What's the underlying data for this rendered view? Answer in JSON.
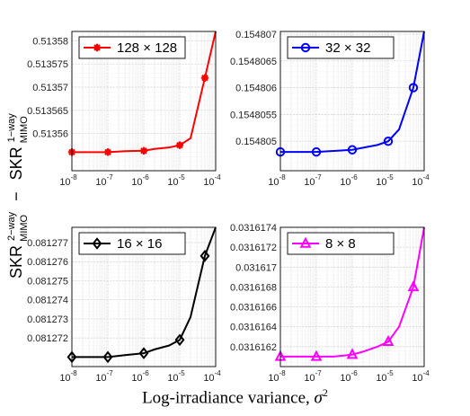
{
  "figure": {
    "xlabel_text": "Log-irradiance variance, ",
    "xlabel_symbol": "σ",
    "xlabel_power": "2",
    "ylabel_skr": "SKR",
    "ylabel_sub": "MIMO",
    "ylabel_sup_two": "2−way",
    "ylabel_sup_one": "1−way",
    "ylabel_minus": "−"
  },
  "chart_data": [
    {
      "type": "line",
      "legend": "128 × 128",
      "color": "#ff0000",
      "marker": "star",
      "xscale": "log",
      "xlim": [
        1e-08,
        0.0001
      ],
      "xticks": [
        1e-08,
        1e-07,
        1e-06,
        1e-05,
        0.0001
      ],
      "xtick_labels": [
        "10-8",
        "10-7",
        "10-6",
        "10-5",
        "10-4"
      ],
      "ylim": [
        0.513552,
        0.513582
      ],
      "yticks": [
        0.51356,
        0.513565,
        0.51357,
        0.513575,
        0.51358
      ],
      "ytick_labels": [
        "0.51356",
        "0.513565",
        "0.51357",
        "0.513575",
        "0.51358"
      ],
      "x": [
        1e-08,
        3e-08,
        1e-07,
        3e-07,
        1e-06,
        2e-06,
        5e-06,
        1e-05,
        2e-05,
        5e-05,
        0.0001
      ],
      "y": [
        0.513556,
        0.513556,
        0.513556,
        0.5135562,
        0.5135563,
        0.5135567,
        0.513557,
        0.5135575,
        0.513559,
        0.513572,
        0.513582
      ],
      "marker_x": [
        1e-08,
        1e-07,
        1e-06,
        1e-05,
        5e-05
      ],
      "grid": true,
      "legend_position": "top-left"
    },
    {
      "type": "line",
      "legend": "32 × 32",
      "color": "#0000ff",
      "marker": "circle",
      "xscale": "log",
      "xlim": [
        1e-08,
        0.0001
      ],
      "xticks": [
        1e-08,
        1e-07,
        1e-06,
        1e-05,
        0.0001
      ],
      "xtick_labels": [
        "10-8",
        "10-7",
        "10-6",
        "10-5",
        "10-4"
      ],
      "ylim": [
        0.15480445,
        0.15480705
      ],
      "yticks": [
        0.154805,
        0.1548055,
        0.154806,
        0.1548065,
        0.154807
      ],
      "ytick_labels": [
        "0.154805",
        "0.1548055",
        "0.154806",
        "0.1548065",
        "0.154807"
      ],
      "x": [
        1e-08,
        3e-08,
        1e-07,
        3e-07,
        1e-06,
        2e-06,
        5e-06,
        1e-05,
        2e-05,
        5e-05,
        0.0001
      ],
      "y": [
        0.1548048,
        0.1548048,
        0.1548048,
        0.15480482,
        0.15480484,
        0.15480488,
        0.15480493,
        0.154805,
        0.15480522,
        0.154806,
        0.15480705
      ],
      "marker_x": [
        1e-08,
        1e-07,
        1e-06,
        1e-05,
        5e-05
      ],
      "grid": true,
      "legend_position": "top-left"
    },
    {
      "type": "line",
      "legend": "16 × 16",
      "color": "#000000",
      "marker": "diamond",
      "xscale": "log",
      "xlim": [
        1e-08,
        0.0001
      ],
      "xticks": [
        1e-08,
        1e-07,
        1e-06,
        1e-05,
        0.0001
      ],
      "xtick_labels": [
        "10-8",
        "10-7",
        "10-6",
        "10-5",
        "10-4"
      ],
      "ylim": [
        0.0812705,
        0.0812778
      ],
      "yticks": [
        0.081272,
        0.081273,
        0.081274,
        0.081275,
        0.081276,
        0.081277
      ],
      "ytick_labels": [
        "0.081272",
        "0.081273",
        "0.081274",
        "0.081275",
        "0.081276",
        "0.081277"
      ],
      "x": [
        1e-08,
        3e-08,
        1e-07,
        3e-07,
        1e-06,
        2e-06,
        5e-06,
        1e-05,
        2e-05,
        5e-05,
        0.0001
      ],
      "y": [
        0.081271,
        0.081271,
        0.081271,
        0.0812711,
        0.0812712,
        0.0812714,
        0.0812716,
        0.0812719,
        0.0812731,
        0.0812763,
        0.0812778
      ],
      "marker_x": [
        1e-08,
        1e-07,
        1e-06,
        1e-05,
        5e-05
      ],
      "grid": true,
      "legend_position": "top-left"
    },
    {
      "type": "line",
      "legend": "8 × 8",
      "color": "#ff00ff",
      "marker": "triangle",
      "xscale": "log",
      "xlim": [
        1e-08,
        0.0001
      ],
      "xticks": [
        1e-08,
        1e-07,
        1e-06,
        1e-05,
        0.0001
      ],
      "xtick_labels": [
        "10-8",
        "10-7",
        "10-6",
        "10-5",
        "10-4"
      ],
      "ylim": [
        0.031616,
        0.0316174
      ],
      "yticks": [
        0.0316162,
        0.0316164,
        0.0316166,
        0.0316168,
        0.031617,
        0.0316172,
        0.0316174
      ],
      "ytick_labels": [
        "0.0316162",
        "0.0316164",
        "0.0316166",
        "0.0316168",
        "0.031617",
        "0.0316172",
        "0.0316174"
      ],
      "x": [
        1e-08,
        3e-08,
        1e-07,
        3e-07,
        1e-06,
        2e-06,
        5e-06,
        1e-05,
        2e-05,
        5e-05,
        0.0001
      ],
      "y": [
        0.0316161,
        0.0316161,
        0.0316161,
        0.0316161,
        0.03161612,
        0.03161615,
        0.0316162,
        0.03161625,
        0.0316164,
        0.0316168,
        0.0316174
      ],
      "marker_x": [
        1e-08,
        1e-07,
        1e-06,
        1e-05,
        5e-05
      ],
      "grid": true,
      "legend_position": "top-left"
    }
  ]
}
